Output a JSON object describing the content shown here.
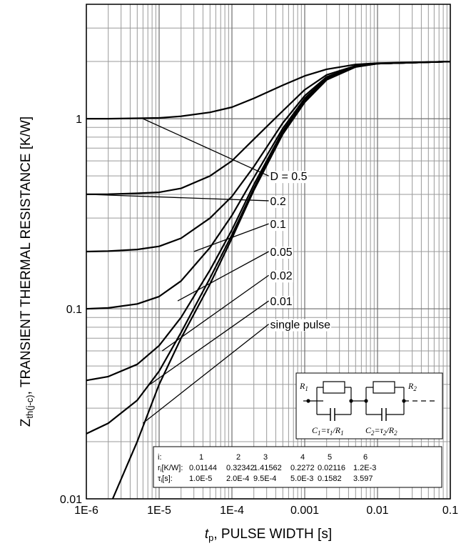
{
  "chart_data": {
    "type": "line",
    "title": "",
    "xlabel_prefix": "t",
    "xlabel_sub": "p",
    "xlabel_rest": ", PULSE WIDTH [s]",
    "ylabel_prefix": "Z",
    "ylabel_sub": "th(j-c)",
    "ylabel_rest": ", TRANSIENT THERMAL RESISTANCE [K/W]",
    "x_scale": "log",
    "y_scale": "log",
    "xlim": [
      1e-06,
      0.1
    ],
    "ylim": [
      0.01,
      4
    ],
    "grid": true,
    "x_tick_labels": [
      "1E-6",
      "1E-5",
      "1E-4",
      "0.001",
      "0.01",
      "0.1"
    ],
    "y_tick_labels": [
      "0.01",
      "0.1",
      "1"
    ],
    "series": [
      {
        "name": "D = 0.5",
        "x": [
          1e-06,
          2e-06,
          5e-06,
          1e-05,
          2e-05,
          5e-05,
          0.0001,
          0.0002,
          0.0005,
          0.001,
          0.002,
          0.005,
          0.01,
          0.1
        ],
        "y": [
          1.0,
          1.0,
          1.005,
          1.01,
          1.03,
          1.08,
          1.15,
          1.28,
          1.5,
          1.68,
          1.82,
          1.93,
          1.96,
          2.0
        ]
      },
      {
        "name": "0.2",
        "x": [
          1e-06,
          2e-06,
          5e-06,
          1e-05,
          2e-05,
          5e-05,
          0.0001,
          0.0002,
          0.0005,
          0.001,
          0.002,
          0.005,
          0.01,
          0.1
        ],
        "y": [
          0.4,
          0.401,
          0.405,
          0.41,
          0.43,
          0.5,
          0.6,
          0.78,
          1.1,
          1.42,
          1.7,
          1.9,
          1.95,
          2.0
        ]
      },
      {
        "name": "0.1",
        "x": [
          1e-06,
          2e-06,
          5e-06,
          1e-05,
          2e-05,
          5e-05,
          0.0001,
          0.0002,
          0.0005,
          0.001,
          0.002,
          0.005,
          0.01,
          0.1
        ],
        "y": [
          0.2,
          0.201,
          0.205,
          0.213,
          0.235,
          0.3,
          0.39,
          0.56,
          0.95,
          1.32,
          1.66,
          1.89,
          1.95,
          2.0
        ]
      },
      {
        "name": "0.05",
        "x": [
          1e-06,
          2e-06,
          5e-06,
          1e-05,
          2e-05,
          5e-05,
          0.0001,
          0.0002,
          0.0005,
          0.001,
          0.002,
          0.005,
          0.01,
          0.1
        ],
        "y": [
          0.1,
          0.101,
          0.106,
          0.116,
          0.14,
          0.21,
          0.31,
          0.49,
          0.89,
          1.28,
          1.64,
          1.88,
          1.95,
          2.0
        ]
      },
      {
        "name": "0.02",
        "x": [
          1e-06,
          2e-06,
          5e-06,
          1e-05,
          2e-05,
          5e-05,
          0.0001,
          0.0002,
          0.0005,
          0.001,
          0.002,
          0.005,
          0.01,
          0.1
        ],
        "y": [
          0.042,
          0.044,
          0.051,
          0.064,
          0.09,
          0.16,
          0.26,
          0.45,
          0.86,
          1.25,
          1.63,
          1.88,
          1.95,
          2.0
        ]
      },
      {
        "name": "0.01",
        "x": [
          1e-06,
          2e-06,
          5e-06,
          1e-05,
          2e-05,
          5e-05,
          0.0001,
          0.0002,
          0.0005,
          0.001,
          0.002,
          0.005,
          0.01,
          0.1
        ],
        "y": [
          0.022,
          0.025,
          0.033,
          0.047,
          0.075,
          0.145,
          0.245,
          0.43,
          0.85,
          1.24,
          1.62,
          1.88,
          1.95,
          2.0
        ]
      },
      {
        "name": "single pulse",
        "x": [
          2.3e-06,
          5e-06,
          1e-05,
          2e-05,
          5e-05,
          0.0001,
          0.0002,
          0.0005,
          0.001,
          0.002,
          0.005,
          0.01,
          0.1
        ],
        "y": [
          0.01,
          0.02,
          0.04,
          0.07,
          0.135,
          0.235,
          0.42,
          0.83,
          1.22,
          1.6,
          1.87,
          1.95,
          2.0
        ]
      }
    ],
    "leaders": [
      {
        "label": "D = 0.5",
        "from": [
          6e-06,
          1.0
        ],
        "to": [
          0.00032,
          0.5
        ]
      },
      {
        "label": "0.2",
        "from": [
          1e-06,
          0.4
        ],
        "to": [
          0.00032,
          0.37
        ]
      },
      {
        "label": "0.1",
        "from": [
          3e-05,
          0.2
        ],
        "to": [
          0.00032,
          0.28
        ]
      },
      {
        "label": "0.05",
        "from": [
          1.8e-05,
          0.11
        ],
        "to": [
          0.00032,
          0.2
        ]
      },
      {
        "label": "0.02",
        "from": [
          1.1e-05,
          0.06
        ],
        "to": [
          0.00032,
          0.15
        ]
      },
      {
        "label": "0.01",
        "from": [
          7.5e-06,
          0.04
        ],
        "to": [
          0.00032,
          0.11
        ]
      },
      {
        "label": "single pulse",
        "from": [
          6e-06,
          0.025
        ],
        "to": [
          0.00032,
          0.083
        ]
      }
    ]
  },
  "circuit": {
    "r1": "R",
    "r1_sub": "1",
    "r2": "R",
    "r2_sub": "2",
    "c1_text": "C",
    "c1_sub": "1",
    "c1_eq": "=τ",
    "c1_eq_sub": "1",
    "c1_div": "/R",
    "c1_div_sub": "1",
    "c2_text": "C",
    "c2_sub": "2",
    "c2_eq": "=τ",
    "c2_eq_sub": "2",
    "c2_div": "/R",
    "c2_div_sub": "2"
  },
  "param_table": {
    "headers": [
      "i:",
      "r",
      "i",
      "[K/W]:",
      "τ",
      "i",
      "[s]:"
    ],
    "row_i": [
      "1",
      "2",
      "3",
      "4",
      "5",
      "6"
    ],
    "row_r": [
      "0.01144",
      "0.32342",
      "1.41562",
      "0.2272",
      "0.02116",
      "1.2E-3"
    ],
    "row_tau": [
      "1.0E-5",
      "2.0E-4",
      "9.5E-4",
      "5.0E-3",
      "0.1582",
      "3.597"
    ]
  }
}
